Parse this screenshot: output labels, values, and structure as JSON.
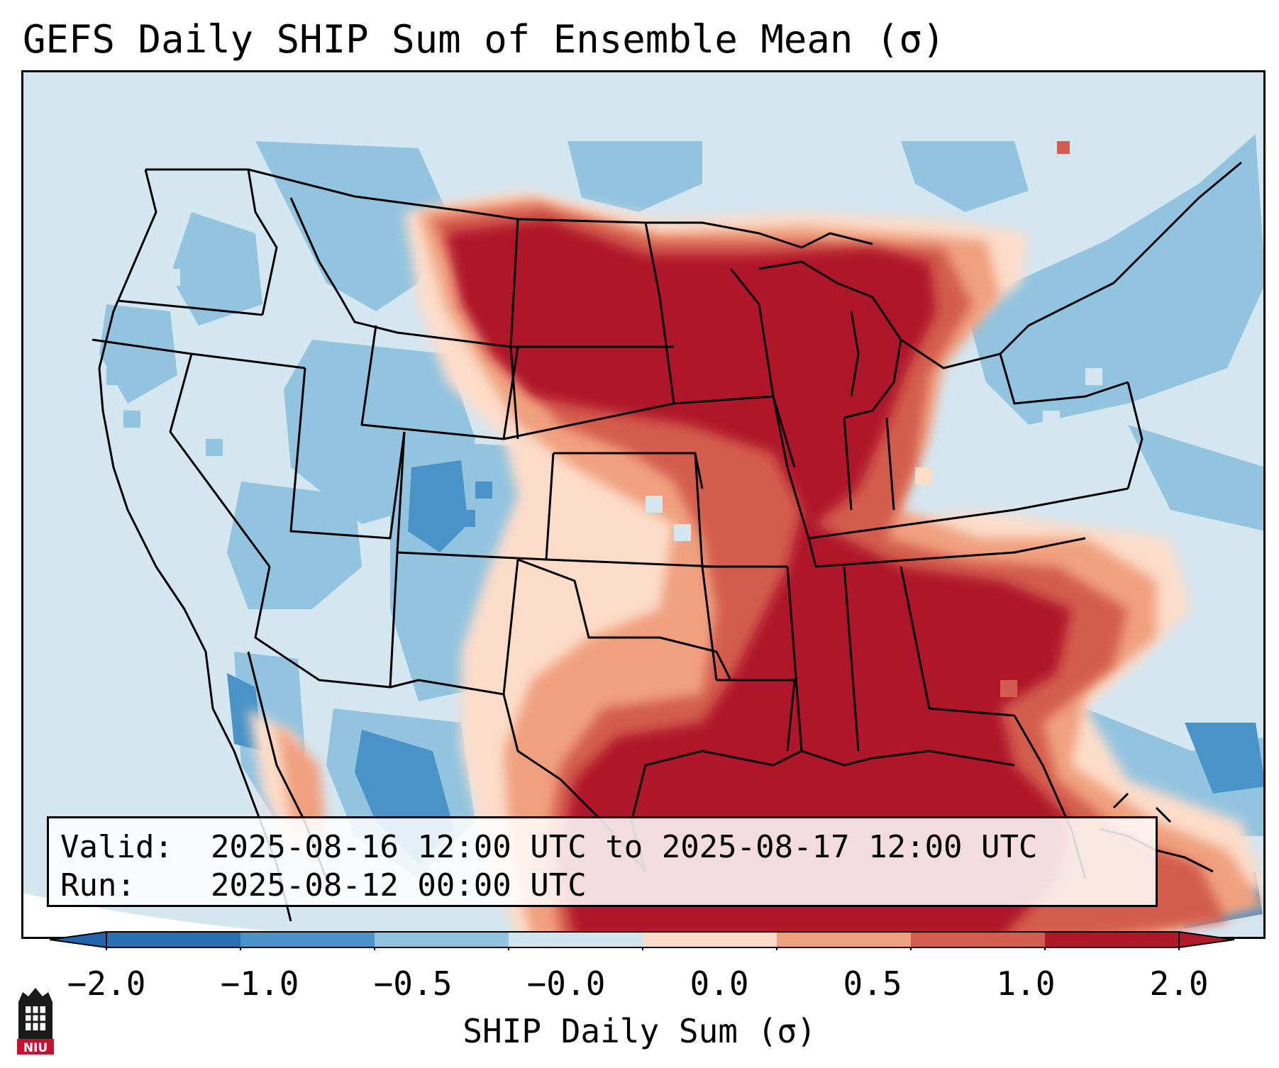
{
  "title": "GEFS Daily SHIP Sum of Ensemble Mean (σ)",
  "info": {
    "valid_label": "Valid:",
    "valid_value": "2025-08-16 12:00 UTC to 2025-08-17 12:00 UTC",
    "run_label": "Run:",
    "run_value": "2025-08-12 00:00 UTC"
  },
  "colorbar": {
    "label": "SHIP Daily Sum (σ)",
    "ticks": [
      "−2.0",
      "−1.0",
      "−0.5",
      "−0.0",
      "0.0",
      "0.5",
      "1.0",
      "2.0"
    ],
    "bin_colors": [
      "#2b6fb3",
      "#4a93c8",
      "#92c4df",
      "#d0e4ef",
      "#fbdcc9",
      "#f0a07f",
      "#d35d4e",
      "#b0182a"
    ],
    "extend_low_color": "#2166ac",
    "extend_high_color": "#b2182b"
  },
  "logo": {
    "text": "NIU"
  },
  "map_colors": {
    "ocean": "#d4e6f0",
    "border": "#000000",
    "frame": "#000000"
  }
}
